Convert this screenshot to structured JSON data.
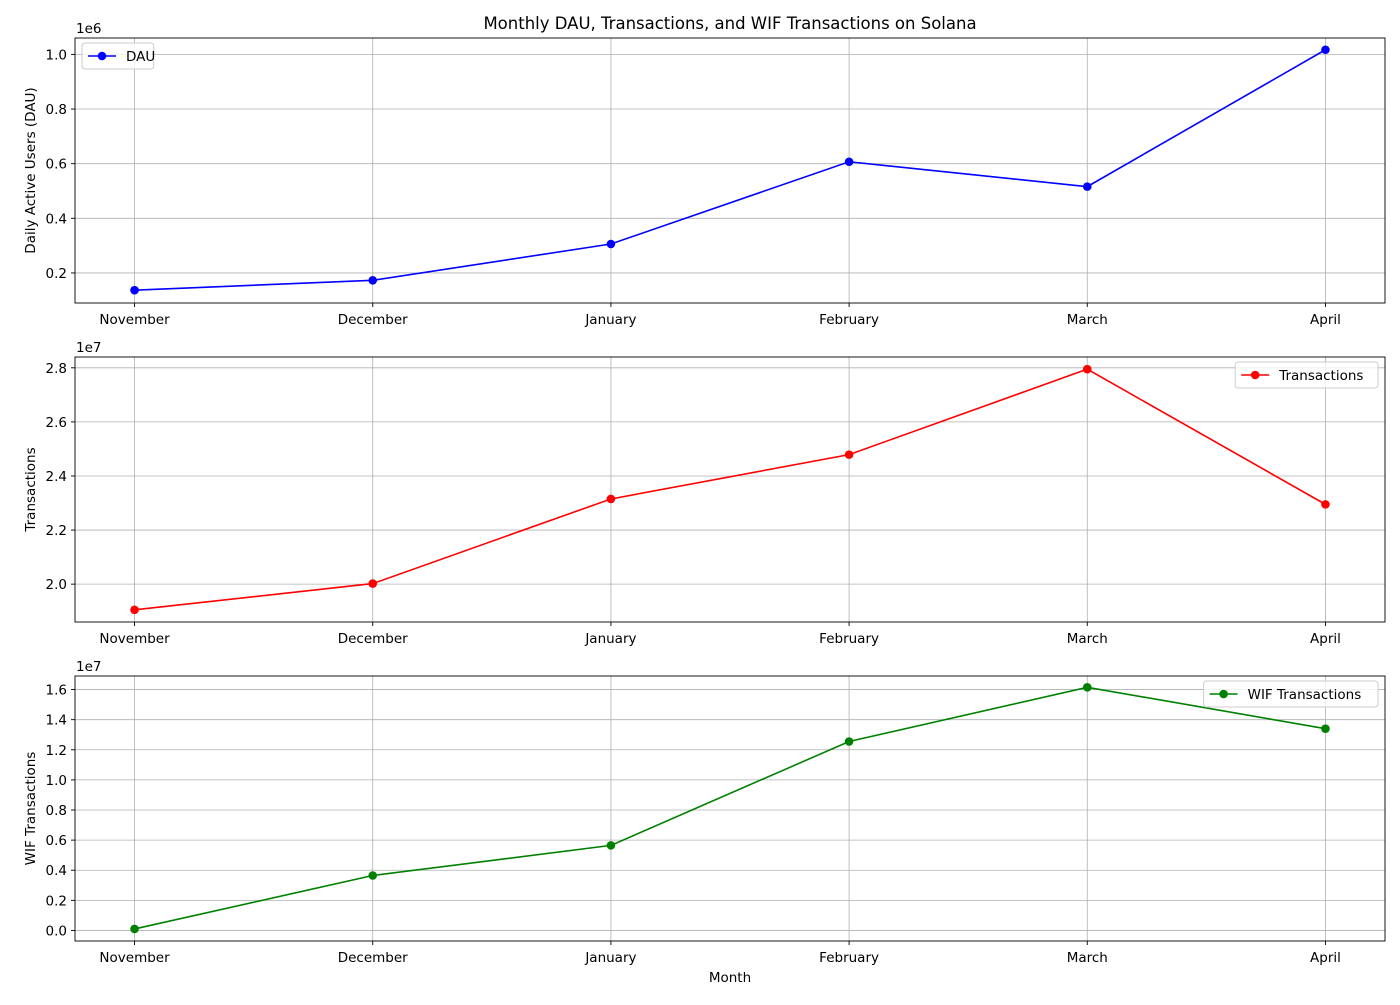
{
  "chart_data": {
    "type": "line",
    "title": "Monthly DAU, Transactions, and WIF Transactions on Solana",
    "xlabel": "Month",
    "categories": [
      "November",
      "December",
      "January",
      "February",
      "March",
      "April"
    ],
    "grid": true,
    "panels": [
      {
        "ylabel": "Daily Active Users (DAU)",
        "offset_label": "1e6",
        "scale": 1000000,
        "ylim": [
          90000,
          1060000
        ],
        "yticks": [
          200000,
          400000,
          600000,
          800000,
          1000000
        ],
        "ytick_labels": [
          "0.2",
          "0.4",
          "0.6",
          "0.8",
          "1.0"
        ],
        "legend_position": "upper-left",
        "series": [
          {
            "name": "DAU",
            "color": "#0000ff",
            "values": [
              137000,
              173000,
              306000,
              607000,
              516000,
              1017000
            ]
          }
        ]
      },
      {
        "ylabel": "Transactions",
        "offset_label": "1e7",
        "scale": 10000000,
        "ylim": [
          18600000,
          28400000
        ],
        "yticks": [
          20000000,
          22000000,
          24000000,
          26000000,
          28000000
        ],
        "ytick_labels": [
          "2.0",
          "2.2",
          "2.4",
          "2.6",
          "2.8"
        ],
        "legend_position": "upper-right",
        "series": [
          {
            "name": "Transactions",
            "color": "#ff0000",
            "values": [
              19050000,
              20020000,
              23150000,
              24790000,
              27950000,
              22950000
            ]
          }
        ]
      },
      {
        "ylabel": "WIF Transactions",
        "offset_label": "1e7",
        "scale": 10000000,
        "ylim": [
          -700000,
          16900000
        ],
        "yticks": [
          0,
          2000000,
          4000000,
          6000000,
          8000000,
          10000000,
          12000000,
          14000000,
          16000000
        ],
        "ytick_labels": [
          "0.0",
          "0.2",
          "0.4",
          "0.6",
          "0.8",
          "1.0",
          "1.2",
          "1.4",
          "1.6"
        ],
        "legend_position": "upper-right",
        "series": [
          {
            "name": "WIF Transactions",
            "color": "#008000",
            "values": [
              100000,
              3650000,
              5650000,
              12550000,
              16150000,
              13400000
            ]
          }
        ]
      }
    ]
  }
}
